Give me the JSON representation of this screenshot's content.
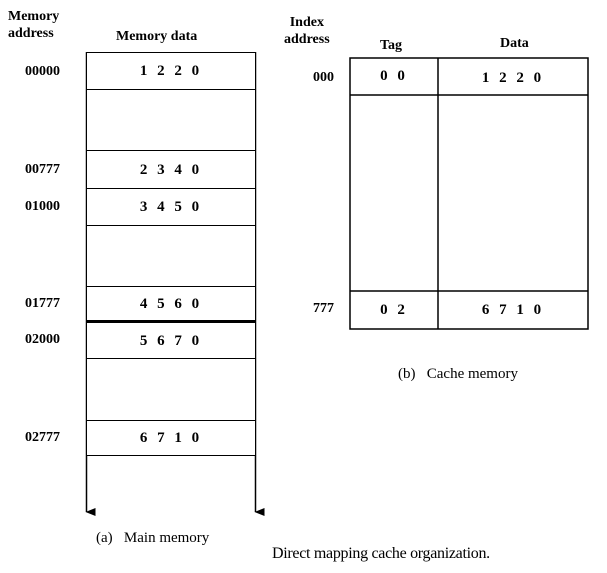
{
  "main_memory": {
    "header_address_line1": "Memory",
    "header_address_line2": "address",
    "header_data": "Memory data",
    "rows": [
      {
        "address": "00000",
        "data": "1 2 2 0"
      },
      {
        "address": "00777",
        "data": "2 3 4 0"
      },
      {
        "address": "01000",
        "data": "3 4 5 0"
      },
      {
        "address": "01777",
        "data": "4 5 6 0"
      },
      {
        "address": "02000",
        "data": "5 6 7 0"
      },
      {
        "address": "02777",
        "data": "6 7 1 0"
      }
    ],
    "caption_label": "(a)",
    "caption_text": "Main memory"
  },
  "cache_memory": {
    "header_index_line1": "Index",
    "header_index_line2": "address",
    "header_tag": "Tag",
    "header_data": "Data",
    "rows": [
      {
        "index": "000",
        "tag": "0 0",
        "data": "1 2 2 0"
      },
      {
        "index": "777",
        "tag": "0 2",
        "data": "6 7 1 0"
      }
    ],
    "caption_label": "(b)",
    "caption_text": "Cache memory"
  },
  "figure_caption": "Direct mapping cache organization."
}
